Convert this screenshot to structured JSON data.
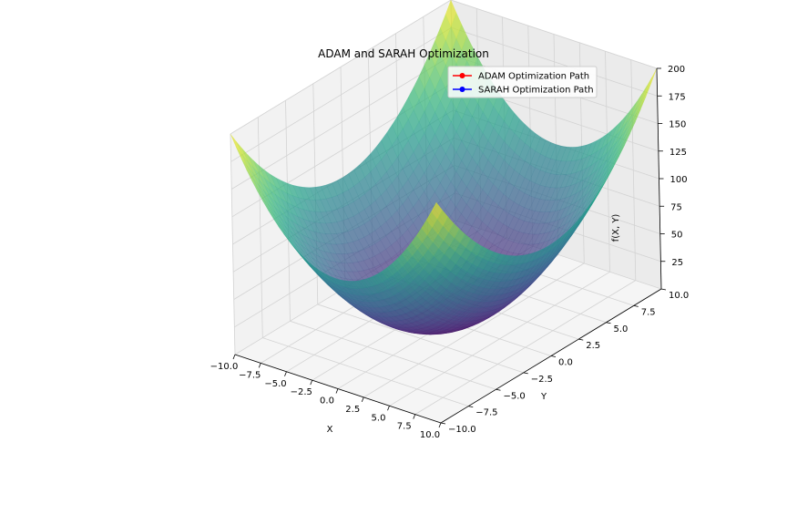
{
  "chart_data": {
    "type": "surface3d",
    "title": "ADAM and SARAH Optimization",
    "xlabel": "X",
    "ylabel": "Y",
    "zlabel": "f(X, Y)",
    "function": "X^2 + Y^2",
    "colormap": "viridis",
    "surface_alpha": 0.7,
    "xlim": [
      -10,
      10
    ],
    "ylim": [
      -10,
      10
    ],
    "zlim": [
      0,
      200
    ],
    "x_ticks": [
      -10.0,
      -7.5,
      -5.0,
      -2.5,
      0.0,
      2.5,
      5.0,
      7.5,
      10.0
    ],
    "x_tick_labels": [
      "−10.0",
      "−7.5",
      "−5.0",
      "−2.5",
      "0.0",
      "2.5",
      "5.0",
      "7.5",
      "10.0"
    ],
    "y_ticks": [
      -10.0,
      -7.5,
      -5.0,
      -2.5,
      0.0,
      2.5,
      5.0,
      7.5,
      10.0
    ],
    "y_tick_labels": [
      "−10.0",
      "−7.5",
      "−5.0",
      "−2.5",
      "0.0",
      "2.5",
      "5.0",
      "7.5",
      "10.0"
    ],
    "z_ticks": [
      25,
      50,
      75,
      100,
      125,
      150,
      175,
      200
    ],
    "z_tick_labels": [
      "25",
      "50",
      "75",
      "100",
      "125",
      "150",
      "175",
      "200"
    ],
    "grid": true,
    "legend_position": "top-right",
    "series": [
      {
        "name": "ADAM Optimization Path",
        "color": "#ff0000",
        "marker": "circle"
      },
      {
        "name": "SARAH Optimization Path",
        "color": "#0000ff",
        "marker": "circle"
      }
    ]
  }
}
